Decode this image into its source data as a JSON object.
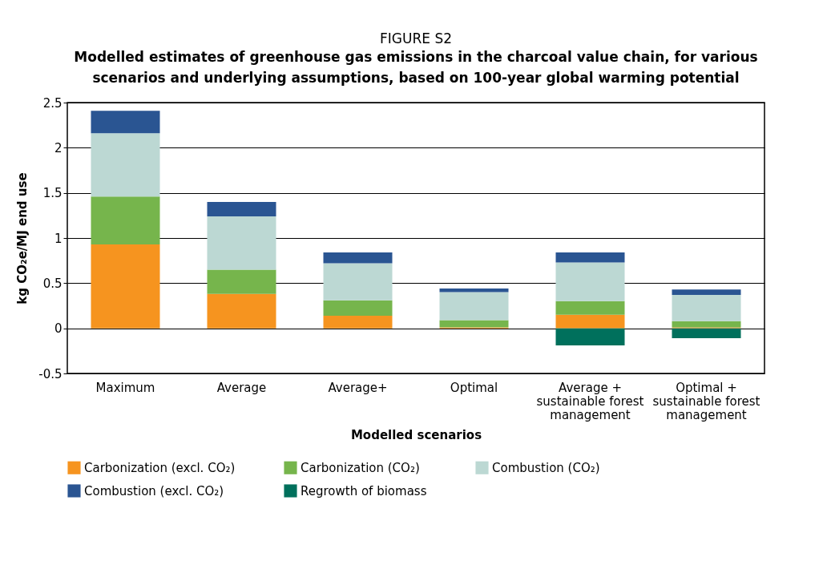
{
  "chart_data": {
    "type": "bar",
    "title": "FIGURE S2",
    "subtitle": "Modelled estimates of greenhouse gas emissions in the charcoal value chain, for various scenarios and underlying assumptions, based on 100-year global warming potential",
    "xlabel": "Modelled scenarios",
    "ylabel": "kg CO₂e/MJ end use",
    "categories": [
      "Maximum",
      "Average",
      "Average+",
      "Optimal",
      "Average + sustainable forest management",
      "Optimal + sustainable forest management"
    ],
    "stacked": true,
    "series": [
      {
        "name": "Carbonization (excl. CO₂)",
        "color": "#f6941f",
        "values": [
          0.93,
          0.38,
          0.14,
          0.01,
          0.15,
          0.01
        ]
      },
      {
        "name": "Carbonization (CO₂)",
        "color": "#76b54c",
        "values": [
          0.53,
          0.27,
          0.17,
          0.08,
          0.15,
          0.07
        ]
      },
      {
        "name": "Combustion (CO₂)",
        "color": "#bcd8d3",
        "values": [
          0.7,
          0.59,
          0.41,
          0.31,
          0.43,
          0.29
        ]
      },
      {
        "name": "Combustion (excl. CO₂)",
        "color": "#2a5592",
        "values": [
          0.25,
          0.16,
          0.12,
          0.04,
          0.11,
          0.06
        ]
      },
      {
        "name": "Regrowth of biomass",
        "color": "#00705c",
        "values": [
          null,
          null,
          null,
          null,
          -0.19,
          -0.11
        ]
      }
    ],
    "ylim": [
      -0.5,
      2.5
    ],
    "yticks": [
      -0.5,
      0,
      0.5,
      1,
      1.5,
      2,
      2.5
    ],
    "grid": "y",
    "legend": "bottom"
  }
}
